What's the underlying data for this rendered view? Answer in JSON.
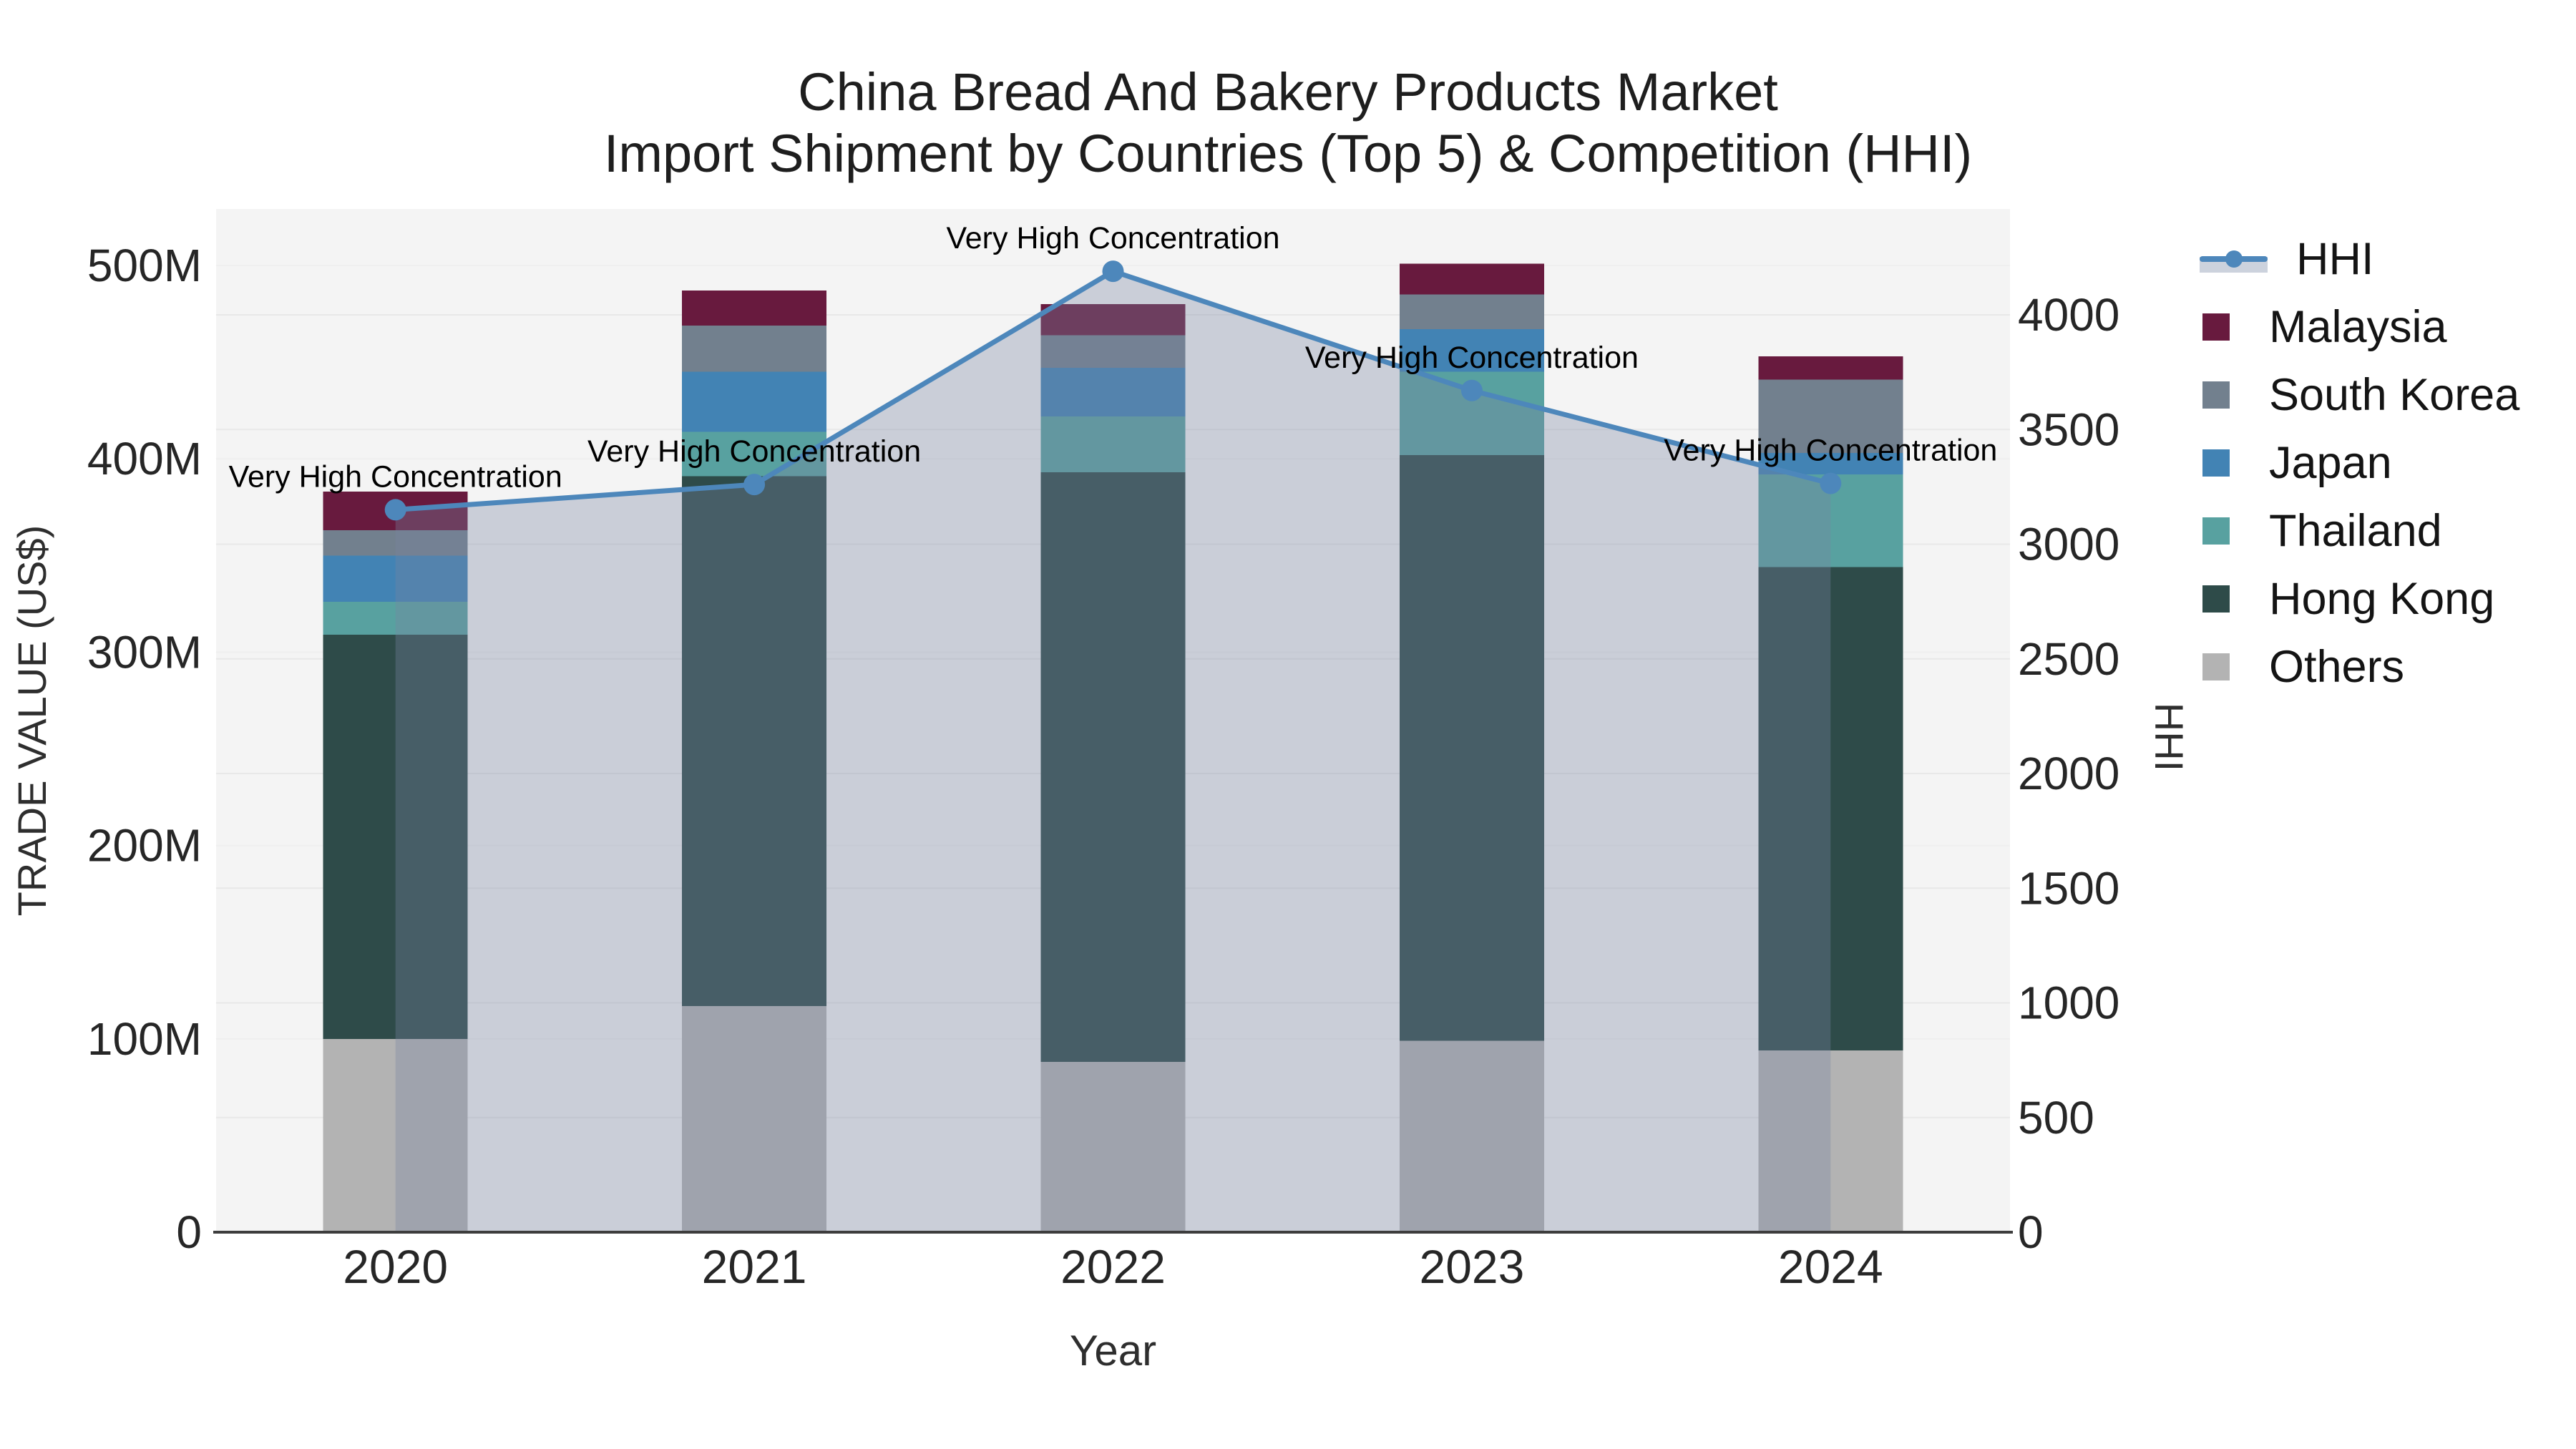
{
  "title": {
    "line1": "China Bread And Bakery Products Market",
    "line2": "Import Shipment by Countries (Top 5) & Competition (HHI)"
  },
  "legend": {
    "items": [
      {
        "label": "HHI",
        "type": "line",
        "color": "#4d87bb"
      },
      {
        "label": "Malaysia",
        "type": "square",
        "color": "#681a3e"
      },
      {
        "label": "South Korea",
        "type": "square",
        "color": "#72808e"
      },
      {
        "label": "Japan",
        "type": "square",
        "color": "#4283b4"
      },
      {
        "label": "Thailand",
        "type": "square",
        "color": "#58a1a0"
      },
      {
        "label": "Hong Kong",
        "type": "square",
        "color": "#2e4b49"
      },
      {
        "label": "Others",
        "type": "square",
        "color": "#b3b3b3"
      }
    ]
  },
  "chart_data": {
    "type": "combo-stacked-bar-line",
    "title": "China Bread And Bakery Products Market Import Shipment by Countries (Top 5) & Competition (HHI)",
    "categories": [
      "2020",
      "2021",
      "2022",
      "2023",
      "2024"
    ],
    "bar_value_unit": "US$ millions",
    "bar_series": [
      {
        "name": "Others",
        "color": "#b3b3b3",
        "values": [
          100,
          117,
          88,
          99,
          94
        ]
      },
      {
        "name": "Hong Kong",
        "color": "#2e4b49",
        "values": [
          209,
          274,
          305,
          303,
          250
        ]
      },
      {
        "name": "Thailand",
        "color": "#58a1a0",
        "values": [
          17,
          23,
          29,
          43,
          48
        ]
      },
      {
        "name": "Japan",
        "color": "#4283b4",
        "values": [
          24,
          31,
          25,
          22,
          11
        ]
      },
      {
        "name": "South Korea",
        "color": "#72808e",
        "values": [
          13,
          24,
          17,
          18,
          38
        ]
      },
      {
        "name": "Malaysia",
        "color": "#681a3e",
        "values": [
          20,
          18,
          16,
          16,
          12
        ]
      }
    ],
    "bar_totals": [
      383,
      487,
      480,
      501,
      453
    ],
    "line_series": {
      "name": "HHI",
      "color": "#4d87bb",
      "fill_color": "rgba(120,133,160,0.34)",
      "values": [
        3150,
        3260,
        4190,
        3670,
        3265
      ],
      "point_annotations": [
        "Very High Concentration",
        "Very High Concentration",
        "Very High Concentration",
        "Very High Concentration",
        "Very High Concentration"
      ]
    },
    "x_axis": {
      "title": "Year",
      "ticks": [
        "2020",
        "2021",
        "2022",
        "2023",
        "2024"
      ]
    },
    "y_left_axis": {
      "title": "TRADE VALUE (US$)",
      "ticks": [
        "0",
        "100M",
        "200M",
        "300M",
        "400M",
        "500M"
      ],
      "tick_values": [
        0,
        100,
        200,
        300,
        400,
        500
      ],
      "range_max_m": 529
    },
    "y_right_axis": {
      "title": "HHI",
      "ticks": [
        "0",
        "500",
        "1000",
        "1500",
        "2000",
        "2500",
        "3000",
        "3500",
        "4000"
      ],
      "tick_values": [
        0,
        500,
        1000,
        1500,
        2000,
        2500,
        3000,
        3500,
        4000
      ],
      "range_max": 4464
    },
    "grid": true,
    "legend_position": "right",
    "plot_background": "#f4f4f4",
    "annotation_color": "#000000",
    "tick_color": "#262626"
  }
}
